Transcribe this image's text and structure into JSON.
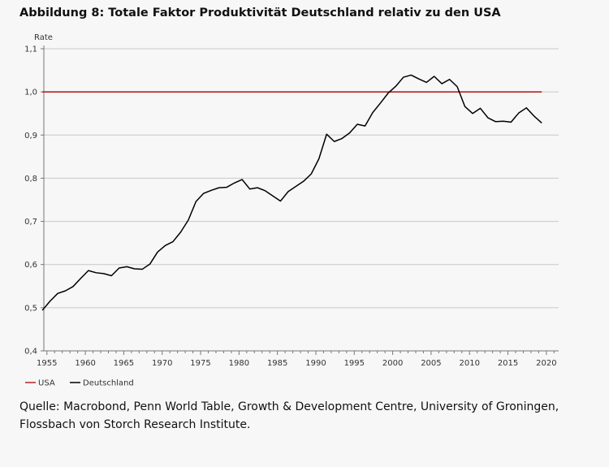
{
  "title": "Abbildung 8: Totale Faktor Produktivität Deutschland relativ zu den USA",
  "source": "Quelle: Macrobond, Penn World Table, Growth & Development Centre, University of Groningen, Flossbach von Storch Research Institute.",
  "chart_data": {
    "type": "line",
    "title": "Abbildung 8: Totale Faktor Produktivität Deutschland relativ zu den USA",
    "ylabel": "Rate",
    "xlabel": "",
    "xlim": [
      1954.6,
      2021.6
    ],
    "ylim": [
      0.4,
      1.1
    ],
    "x_ticks": [
      1955,
      1960,
      1965,
      1970,
      1975,
      1980,
      1985,
      1990,
      1995,
      2000,
      2005,
      2010,
      2015,
      2020
    ],
    "y_ticks": [
      0.4,
      0.5,
      0.6,
      0.7,
      0.8,
      0.9,
      1.0,
      1.1
    ],
    "y_tick_labels": [
      "0,4",
      "0,5",
      "0,6",
      "0,7",
      "0,8",
      "0,9",
      "1,0",
      "1,1"
    ],
    "grid": true,
    "legend_position": "bottom-left",
    "series": [
      {
        "name": "USA",
        "color": "#b22222",
        "x": [
          1954.4,
          2019.4
        ],
        "values": [
          1.0,
          1.0
        ]
      },
      {
        "name": "Deutschland",
        "color": "#000000",
        "x": [
          1954.4,
          1955.4,
          1956.4,
          1957.4,
          1958.4,
          1959.4,
          1960.4,
          1961.4,
          1962.4,
          1963.4,
          1964.4,
          1965.4,
          1966.4,
          1967.4,
          1968.4,
          1969.4,
          1970.4,
          1971.4,
          1972.4,
          1973.4,
          1974.4,
          1975.4,
          1976.4,
          1977.4,
          1978.4,
          1979.4,
          1980.4,
          1981.4,
          1982.4,
          1983.4,
          1984.4,
          1985.4,
          1986.4,
          1987.4,
          1988.4,
          1989.4,
          1990.4,
          1991.4,
          1992.4,
          1993.4,
          1994.4,
          1995.4,
          1996.4,
          1997.4,
          1998.4,
          1999.4,
          2000.4,
          2001.4,
          2002.4,
          2003.4,
          2004.4,
          2005.4,
          2006.4,
          2007.4,
          2008.4,
          2009.4,
          2010.4,
          2011.4,
          2012.4,
          2013.4,
          2014.4,
          2015.4,
          2016.4,
          2017.4,
          2018.4,
          2019.4
        ],
        "values": [
          0.494,
          0.515,
          0.533,
          0.539,
          0.549,
          0.568,
          0.586,
          0.581,
          0.579,
          0.574,
          0.592,
          0.595,
          0.59,
          0.589,
          0.601,
          0.629,
          0.644,
          0.653,
          0.675,
          0.703,
          0.746,
          0.765,
          0.772,
          0.778,
          0.779,
          0.789,
          0.797,
          0.775,
          0.778,
          0.771,
          0.759,
          0.747,
          0.769,
          0.781,
          0.793,
          0.81,
          0.845,
          0.902,
          0.885,
          0.892,
          0.905,
          0.925,
          0.921,
          0.952,
          0.974,
          0.997,
          1.013,
          1.034,
          1.039,
          1.03,
          1.022,
          1.036,
          1.019,
          1.029,
          1.012,
          0.966,
          0.95,
          0.962,
          0.94,
          0.931,
          0.932,
          0.93,
          0.951,
          0.963,
          0.944,
          0.928
        ]
      }
    ]
  }
}
